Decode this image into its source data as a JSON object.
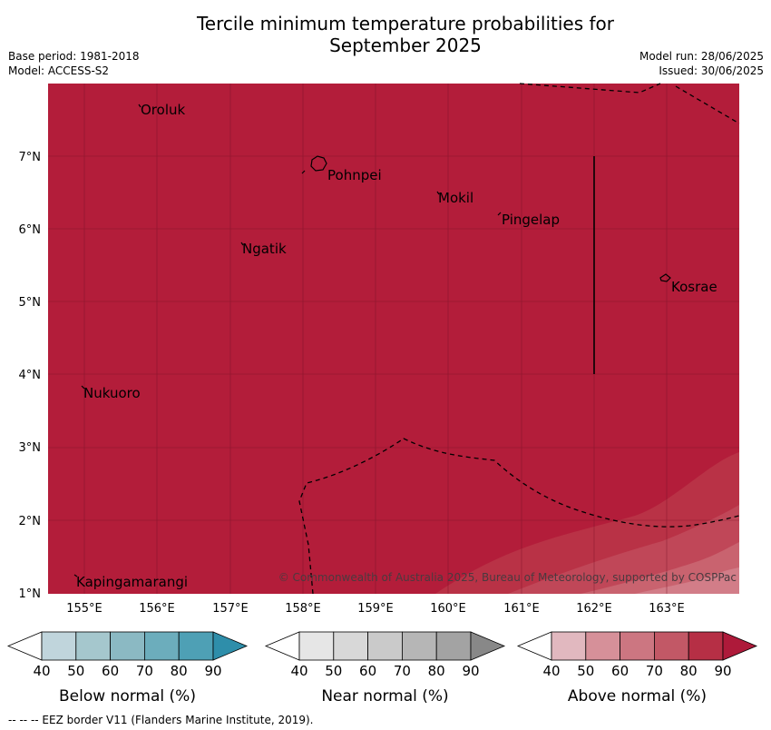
{
  "title_line1": "Tercile minimum temperature probabilities for",
  "title_line2": "September 2025",
  "meta": {
    "base_period": "Base period: 1981-2018",
    "model": "Model: ACCESS-S2",
    "model_run": "Model run: 28/06/2025",
    "issued": "Issued: 30/06/2025"
  },
  "map": {
    "lat_ticks": [
      "1°N",
      "2°N",
      "3°N",
      "4°N",
      "5°N",
      "6°N",
      "7°N"
    ],
    "lon_ticks": [
      "155°E",
      "156°E",
      "157°E",
      "158°E",
      "159°E",
      "160°E",
      "161°E",
      "162°E",
      "163°E"
    ],
    "places": [
      "Oroluk",
      "Pohnpei",
      "Mokil",
      "Pingelap",
      "Ngatik",
      "Kosrae",
      "Nukuoro",
      "Kapingamarangi"
    ],
    "copyright": "© Commonwealth of Australia 2025, Bureau of Meteorology, supported by COSPPac",
    "fill_color": "#b31d3a"
  },
  "legends": [
    {
      "label": "Below normal (%)",
      "colors": [
        "#ffffff",
        "#c0d5dc",
        "#a5c7cd",
        "#8bb9c3",
        "#6cadbc",
        "#4ea0b5",
        "#2e8eaa"
      ]
    },
    {
      "label": "Near normal (%)",
      "colors": [
        "#ffffff",
        "#e6e6e6",
        "#d8d8d8",
        "#cacaca",
        "#b6b6b6",
        "#a3a3a3",
        "#888888"
      ]
    },
    {
      "label": "Above normal (%)",
      "colors": [
        "#ffffff",
        "#e1b8bf",
        "#d69099",
        "#cc7681",
        "#c25866",
        "#b62f45",
        "#ae1a3a"
      ]
    }
  ],
  "legend_ticks": [
    "40",
    "50",
    "60",
    "70",
    "80",
    "90"
  ],
  "footnote": "--  --  -- EEZ border V11 (Flanders Marine Institute, 2019)."
}
